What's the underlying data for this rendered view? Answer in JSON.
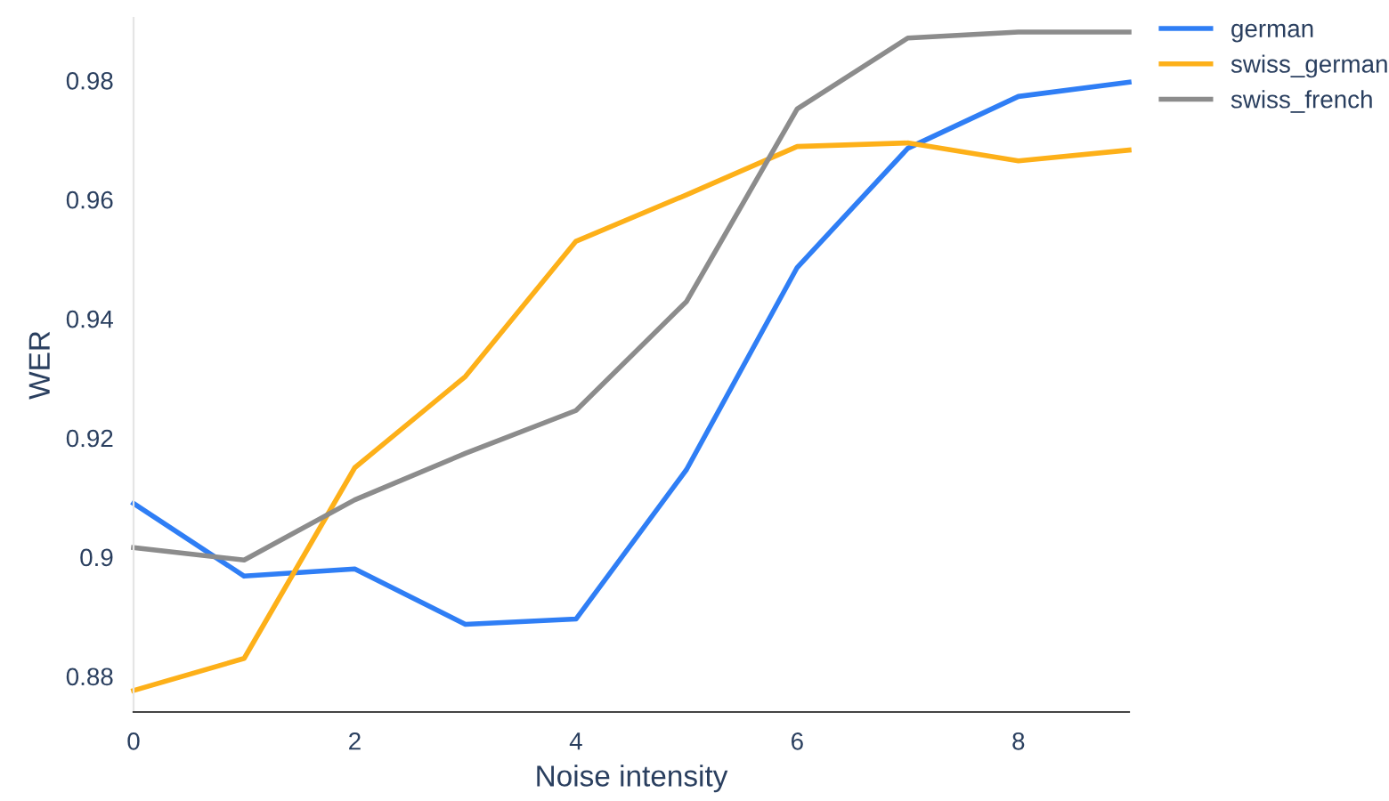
{
  "chart_data": {
    "type": "line",
    "xlabel": "Noise intensity",
    "ylabel": "WER",
    "x": [
      0,
      1,
      2,
      3,
      4,
      5,
      6,
      7,
      8,
      9
    ],
    "series": [
      {
        "name": "german",
        "color": "#2f7ef5",
        "values": [
          0.909,
          0.8968,
          0.898,
          0.8887,
          0.8896,
          0.9147,
          0.9486,
          0.9686,
          0.9773,
          0.9797
        ]
      },
      {
        "name": "swiss_german",
        "color": "#fdb019",
        "values": [
          0.8776,
          0.883,
          0.915,
          0.9303,
          0.953,
          0.9608,
          0.9689,
          0.9695,
          0.9665,
          0.9683
        ]
      },
      {
        "name": "swiss_french",
        "color": "#8c8c8c",
        "values": [
          0.9016,
          0.8995,
          0.9096,
          0.9174,
          0.9246,
          0.9429,
          0.9752,
          0.9871,
          0.9881,
          0.9881
        ]
      }
    ],
    "xlim": [
      0,
      9
    ],
    "ylim": [
      0.874,
      0.9905
    ],
    "xticks": [
      0,
      2,
      4,
      6,
      8
    ],
    "yticks": [
      0.88,
      0.9,
      0.92,
      0.94,
      0.96,
      0.98
    ],
    "grid": false,
    "legend": "top right"
  }
}
